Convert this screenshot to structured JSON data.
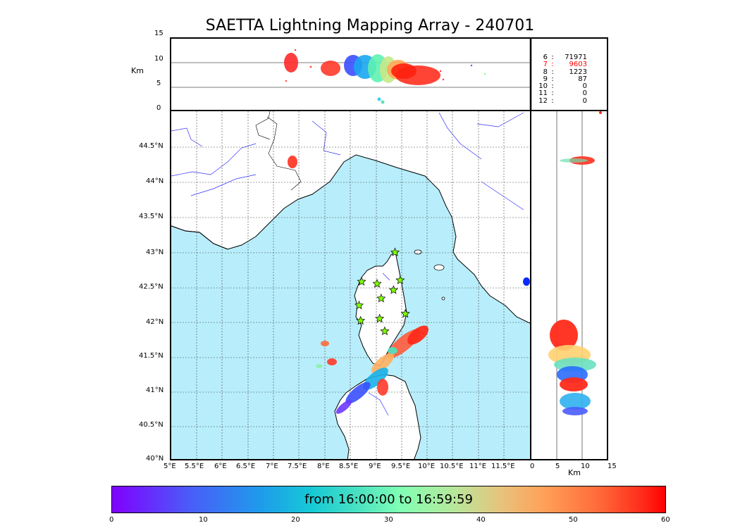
{
  "title": "SAETTA Lightning Mapping Array - 240701",
  "altitude_panel": {
    "ylabel": "Km",
    "yticks": [
      "15",
      "10",
      "5",
      "0"
    ]
  },
  "side_panel": {
    "xlabel": "Km",
    "xticks": [
      "0",
      "5",
      "10",
      "15"
    ]
  },
  "map": {
    "lon_ticks": [
      "5°E",
      "5.5°E",
      "6°E",
      "6.5°E",
      "7°E",
      "7.5°E",
      "8°E",
      "8.5°E",
      "9°E",
      "9.5°E",
      "10°E",
      "10.5°E",
      "11°E",
      "11.5°E"
    ],
    "lat_ticks": [
      "44.5°N",
      "44°N",
      "43.5°N",
      "43°N",
      "42.5°N",
      "42°N",
      "41.5°N",
      "41°N",
      "40.5°N",
      "40°N"
    ],
    "sea_color": "#b8eefb",
    "coast_color": "#000000",
    "river_color": "#0000ff",
    "station_marker": "star",
    "station_color": "#7fff00",
    "stations": [
      [
        9.35,
        42.98
      ],
      [
        8.7,
        42.56
      ],
      [
        9.0,
        42.53
      ],
      [
        9.45,
        42.58
      ],
      [
        9.32,
        42.44
      ],
      [
        8.65,
        42.22
      ],
      [
        9.08,
        42.32
      ],
      [
        9.55,
        42.1
      ],
      [
        8.68,
        42.0
      ],
      [
        9.05,
        42.03
      ],
      [
        9.15,
        41.85
      ]
    ]
  },
  "station_counts": {
    "rows": [
      {
        "level": "6",
        "sep": ":",
        "count": "71971",
        "color": "#000000"
      },
      {
        "level": "7",
        "sep": ":",
        "count": "9603",
        "color": "#ff0000"
      },
      {
        "level": "8",
        "sep": ":",
        "count": "1223",
        "color": "#000000"
      },
      {
        "level": "9",
        "sep": ":",
        "count": "87",
        "color": "#000000"
      },
      {
        "level": "10",
        "sep": ":",
        "count": "0",
        "color": "#000000"
      },
      {
        "level": "11",
        "sep": ":",
        "count": "0",
        "color": "#000000"
      },
      {
        "level": "12",
        "sep": ":",
        "count": "0",
        "color": "#000000"
      }
    ]
  },
  "colorbar": {
    "label": "from 16:00:00 to 16:59:59",
    "ticks": [
      "0",
      "10",
      "20",
      "30",
      "40",
      "50",
      "60"
    ],
    "colormap": "rainbow"
  }
}
